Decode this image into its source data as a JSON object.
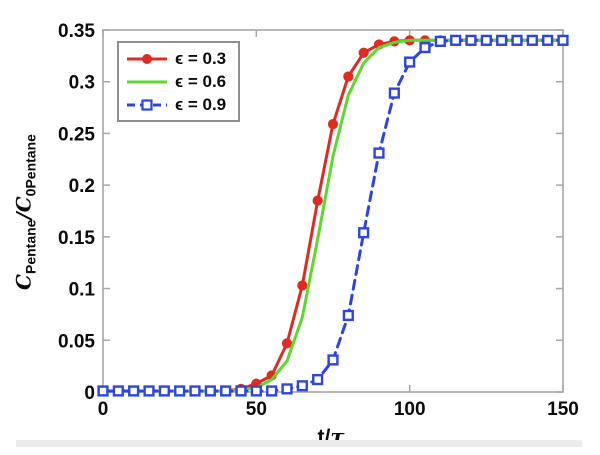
{
  "figure": {
    "background": "#ffffff",
    "border_color": "#a6a6a6"
  },
  "chart_data": {
    "type": "line",
    "title": "",
    "xlabel": "t/τ",
    "ylabel": "C_Pentane/C_0Pentane",
    "xlabel_parts": {
      "prefix": "t/",
      "tau": "τ"
    },
    "ylabel_parts": {
      "c1": "C",
      "sub1": "Pentane",
      "slash": "/",
      "c2": "C",
      "sub2": "0Pentane"
    },
    "xlim": [
      0,
      150
    ],
    "ylim": [
      0,
      0.35
    ],
    "grid": false,
    "legend_position": "top-left",
    "xticks": {
      "values": [
        0,
        50,
        100,
        150
      ],
      "labels": [
        "0",
        "50",
        "100",
        "150"
      ]
    },
    "yticks": {
      "values": [
        0,
        0.05,
        0.1,
        0.15,
        0.2,
        0.25,
        0.3,
        0.35
      ],
      "labels": [
        "0",
        "0.05",
        "0.1",
        "0.15",
        "0.2",
        "0.25",
        "0.3",
        "0.35"
      ]
    },
    "x": [
      0,
      5,
      10,
      15,
      20,
      25,
      30,
      35,
      40,
      45,
      50,
      55,
      60,
      65,
      70,
      75,
      80,
      85,
      90,
      95,
      100,
      105,
      110,
      115,
      120,
      125,
      130,
      135,
      140,
      145,
      150
    ],
    "series": [
      {
        "name": "ϵ = 0.3",
        "color": "#df2b20",
        "line": "solid",
        "marker": "circle-filled",
        "values": [
          0.001,
          0.001,
          0.001,
          0.001,
          0.001,
          0.001,
          0.001,
          0.001,
          0.001,
          0.003,
          0.008,
          0.016,
          0.047,
          0.103,
          0.185,
          0.259,
          0.305,
          0.328,
          0.336,
          0.339,
          0.34,
          0.34,
          0.34,
          0.34,
          0.34,
          0.34,
          0.34,
          0.34,
          0.34,
          0.34,
          0.34
        ]
      },
      {
        "name": "ϵ = 0.6",
        "color": "#5bd92e",
        "line": "solid",
        "marker": "none",
        "values": [
          0.001,
          0.001,
          0.001,
          0.001,
          0.001,
          0.001,
          0.001,
          0.001,
          0.001,
          0.002,
          0.004,
          0.012,
          0.03,
          0.072,
          0.148,
          0.228,
          0.287,
          0.318,
          0.333,
          0.338,
          0.34,
          0.34,
          0.34,
          0.34,
          0.34,
          0.34,
          0.34,
          0.34,
          0.34,
          0.34,
          0.34
        ]
      },
      {
        "name": "ϵ = 0.9",
        "color": "#2c45e2",
        "line": "dashed",
        "marker": "square-open",
        "values": [
          0.001,
          0.001,
          0.001,
          0.001,
          0.001,
          0.001,
          0.001,
          0.001,
          0.001,
          0.001,
          0.001,
          0.001,
          0.003,
          0.006,
          0.012,
          0.031,
          0.074,
          0.154,
          0.231,
          0.289,
          0.319,
          0.333,
          0.339,
          0.34,
          0.34,
          0.34,
          0.34,
          0.34,
          0.34,
          0.34,
          0.34
        ]
      }
    ]
  }
}
